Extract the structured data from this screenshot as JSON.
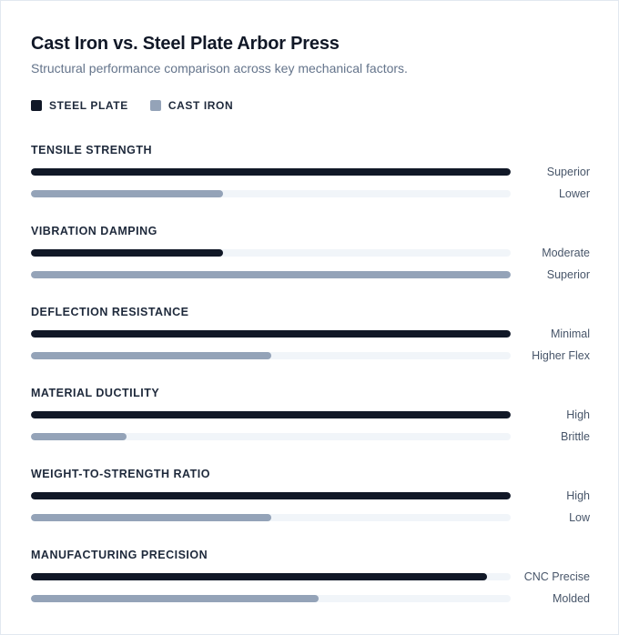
{
  "title": "Cast Iron vs. Steel Plate Arbor Press",
  "subtitle": "Structural performance comparison across key mechanical factors.",
  "colors": {
    "steel_plate": "#111827",
    "cast_iron": "#94a3b8",
    "track": "#f1f5f9"
  },
  "chart_data": {
    "type": "bar",
    "orientation": "horizontal",
    "title": "Cast Iron vs. Steel Plate Arbor Press",
    "subtitle": "Structural performance comparison across key mechanical factors.",
    "legend_position": "top-left",
    "grid": false,
    "xlim": [
      0,
      100
    ],
    "categories": [
      "TENSILE STRENGTH",
      "VIBRATION DAMPING",
      "DEFLECTION RESISTANCE",
      "MATERIAL DUCTILITY",
      "WEIGHT-TO-STRENGTH RATIO",
      "MANUFACTURING PRECISION"
    ],
    "series": [
      {
        "name": "STEEL PLATE",
        "color": "#111827",
        "values": [
          100,
          40,
          100,
          100,
          100,
          95
        ],
        "labels": [
          "Superior",
          "Moderate",
          "Minimal",
          "High",
          "High",
          "CNC Precise"
        ]
      },
      {
        "name": "CAST IRON",
        "color": "#94a3b8",
        "values": [
          40,
          100,
          50,
          20,
          50,
          60
        ],
        "labels": [
          "Lower",
          "Superior",
          "Higher Flex",
          "Brittle",
          "Low",
          "Molded"
        ]
      }
    ]
  }
}
